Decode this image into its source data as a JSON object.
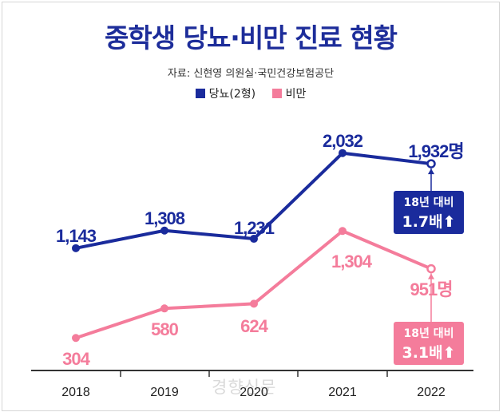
{
  "header": {
    "title": "중학생 당뇨·비만 진료 현황",
    "source": "자료: 신현영 의원실·국민건강보험공단"
  },
  "chart_data": {
    "type": "line",
    "title": "중학생 당뇨·비만 진료 현황",
    "categories": [
      "2018",
      "2019",
      "2020",
      "2021",
      "2022"
    ],
    "series": [
      {
        "name": "당뇨(2형)",
        "color": "#1a2b9c",
        "values": [
          1143,
          1308,
          1231,
          2032,
          1932
        ],
        "labels": [
          "1,143",
          "1,308",
          "1,231",
          "2,032",
          "1,932명"
        ]
      },
      {
        "name": "비만",
        "color": "#f47c9b",
        "values": [
          304,
          580,
          624,
          1304,
          951
        ],
        "labels": [
          "304",
          "580",
          "624",
          "1,304",
          "951명"
        ]
      }
    ],
    "ylim": [
      0,
      2200
    ],
    "grid": false,
    "legend": "top-center"
  },
  "callouts": {
    "diabetes": {
      "line1": "18년 대비",
      "line2": "1.7배",
      "arrow": "⬆",
      "color": "#1a2b9c"
    },
    "obesity": {
      "line1": "18년 대비",
      "line2": "3.1배",
      "arrow": "⬆",
      "color": "#f47c9b"
    }
  },
  "watermark": "경향신문"
}
